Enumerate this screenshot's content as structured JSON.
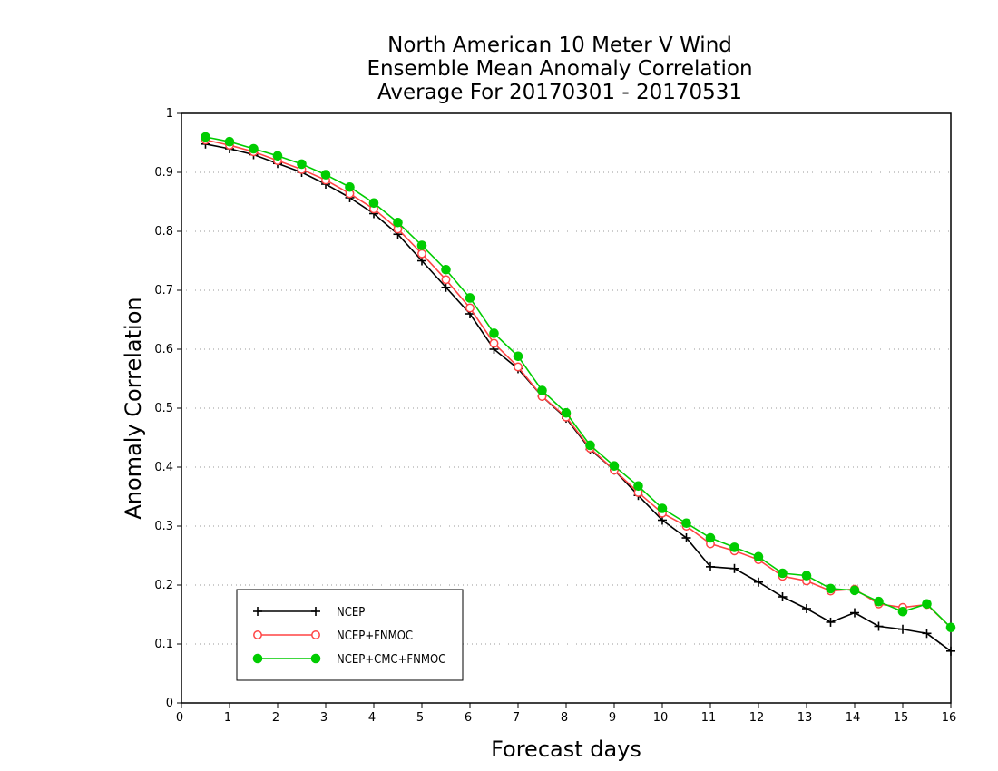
{
  "chart_data": {
    "type": "line",
    "title_lines": [
      "North American 10 Meter V Wind",
      "Ensemble Mean Anomaly Correlation",
      "Average For 20170301 - 20170531"
    ],
    "xlabel": "Forecast days",
    "ylabel": "Anomaly Correlation",
    "xlim": [
      0,
      16
    ],
    "ylim": [
      0,
      1
    ],
    "xticks": [
      "0",
      "1",
      "2",
      "3",
      "4",
      "5",
      "6",
      "7",
      "8",
      "9",
      "10",
      "11",
      "12",
      "13",
      "14",
      "15",
      "16"
    ],
    "yticks": [
      "0",
      "0.1",
      "0.2",
      "0.3",
      "0.4",
      "0.5",
      "0.6",
      "0.7",
      "0.8",
      "0.9",
      "1"
    ],
    "grid": "horizontal dotted",
    "legend_position": "bottom-left",
    "x": [
      0.5,
      1,
      1.5,
      2,
      2.5,
      3,
      3.5,
      4,
      4.5,
      5,
      5.5,
      6,
      6.5,
      7,
      7.5,
      8,
      8.5,
      9,
      9.5,
      10,
      10.5,
      11,
      11.5,
      12,
      12.5,
      13,
      13.5,
      14,
      14.5,
      15,
      15.5,
      16
    ],
    "series": [
      {
        "name": "NCEP",
        "color": "#000000",
        "marker": "plus",
        "values": [
          0.948,
          0.94,
          0.93,
          0.915,
          0.9,
          0.88,
          0.857,
          0.83,
          0.795,
          0.75,
          0.705,
          0.66,
          0.6,
          0.567,
          0.52,
          0.483,
          0.43,
          0.395,
          0.352,
          0.31,
          0.28,
          0.231,
          0.228,
          0.205,
          0.18,
          0.16,
          0.137,
          0.153,
          0.13,
          0.125,
          0.118,
          0.088
        ]
      },
      {
        "name": "NCEP+FNMOC",
        "color": "#ff4444",
        "marker": "open-circle",
        "values": [
          0.955,
          0.946,
          0.935,
          0.92,
          0.905,
          0.887,
          0.864,
          0.838,
          0.804,
          0.762,
          0.718,
          0.67,
          0.61,
          0.57,
          0.52,
          0.485,
          0.432,
          0.395,
          0.357,
          0.322,
          0.3,
          0.27,
          0.258,
          0.243,
          0.215,
          0.207,
          0.19,
          0.193,
          0.168,
          0.162,
          0.167,
          0.128
        ]
      },
      {
        "name": "NCEP+CMC+FNMOC",
        "color": "#00cc00",
        "marker": "filled-circle",
        "values": [
          0.96,
          0.952,
          0.94,
          0.928,
          0.914,
          0.896,
          0.875,
          0.848,
          0.815,
          0.776,
          0.735,
          0.687,
          0.627,
          0.588,
          0.53,
          0.492,
          0.437,
          0.402,
          0.368,
          0.33,
          0.305,
          0.28,
          0.264,
          0.248,
          0.22,
          0.216,
          0.194,
          0.191,
          0.172,
          0.155,
          0.168,
          0.128
        ]
      }
    ]
  }
}
